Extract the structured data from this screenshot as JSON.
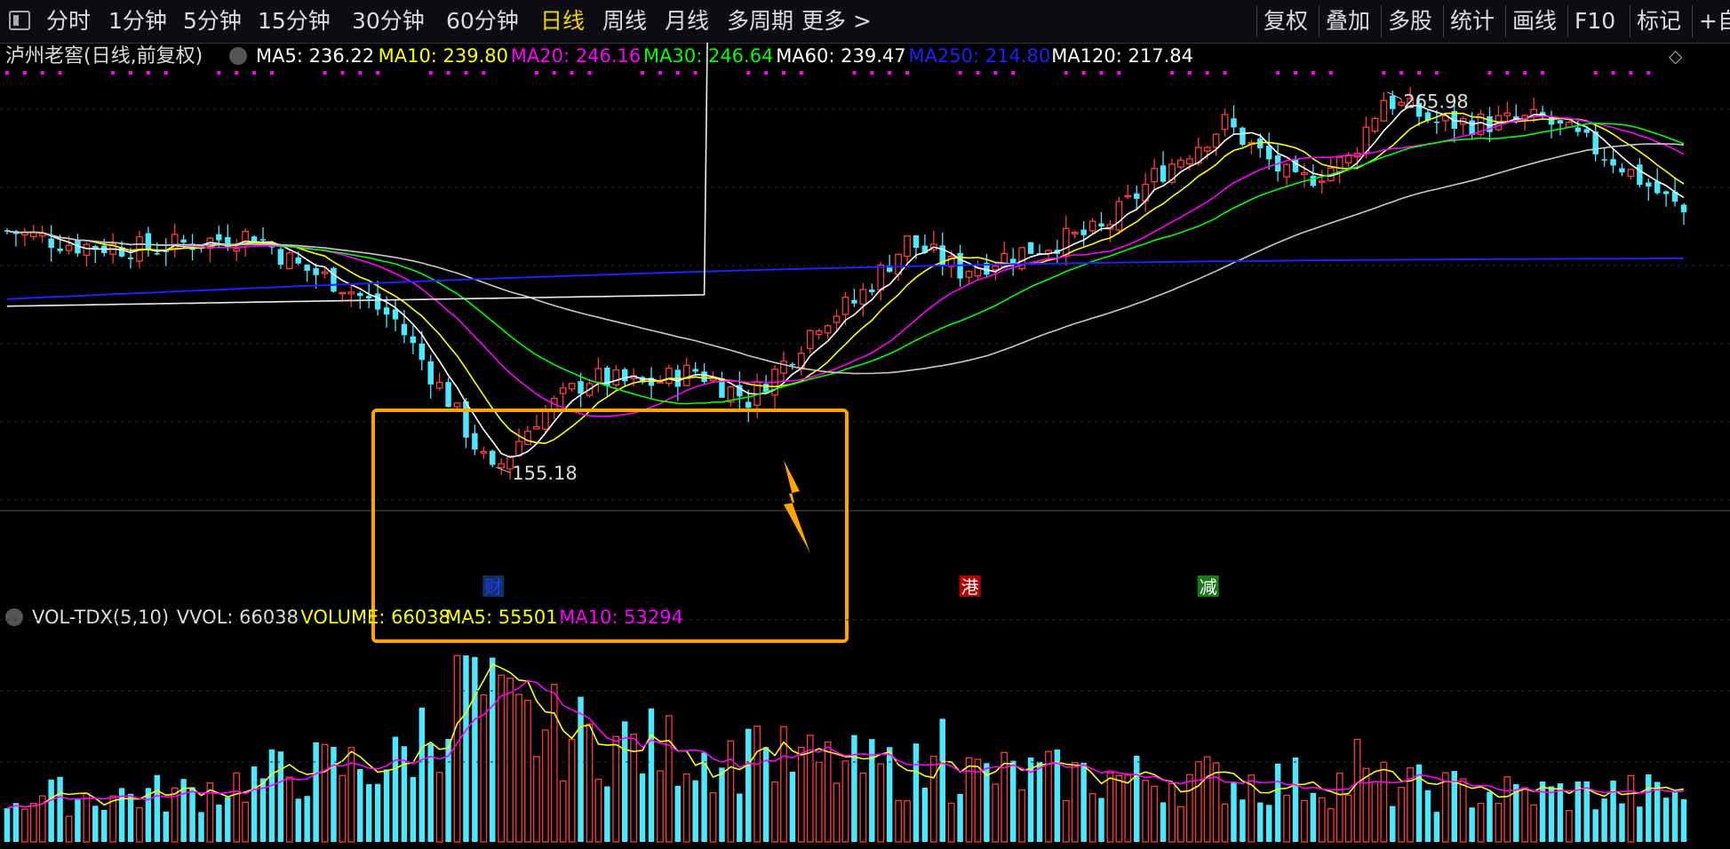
{
  "toolbar": {
    "left_tabs": [
      "分时",
      "1分钟",
      "5分钟",
      "15分钟",
      "30分钟",
      "60分钟",
      "日线",
      "周线",
      "月线",
      "多周期",
      "更多 >"
    ],
    "active_tab": "日线",
    "right_tabs": [
      "复权",
      "叠加",
      "多股",
      "统计",
      "画线",
      "F10",
      "标记",
      "+自选"
    ]
  },
  "colors": {
    "background": "#000000",
    "up": "#ff3b3b",
    "down": "#4be8ff",
    "ma5": "#ffffff",
    "ma10": "#ffff00",
    "ma20": "#ff00ff",
    "ma30": "#00ff00",
    "ma60": "#c8c8c8",
    "ma250": "#1f1fff",
    "ma120": "#eeeeee",
    "highlight_box": "#ffa500"
  },
  "price_panel": {
    "title": "泸州老窖(日线,前复权)",
    "indicators": [
      {
        "label": "MA5: 236.22",
        "color": "#ffffff"
      },
      {
        "label": "MA10: 239.80",
        "color": "#ffff00"
      },
      {
        "label": "MA20: 246.16",
        "color": "#ff00ff"
      },
      {
        "label": "MA30: 246.64",
        "color": "#00ff00"
      },
      {
        "label": "MA60: 239.47",
        "color": "#ffffff"
      },
      {
        "label": "MA250: 214.80",
        "color": "#2020ff"
      },
      {
        "label": "MA120: 217.84",
        "color": "#ffffff"
      }
    ],
    "high_label": "265.98",
    "low_label": "155.18",
    "event_badges": [
      {
        "text": "财",
        "color": "#1e3cff",
        "bg": "#123060",
        "index": 55
      },
      {
        "text": "港",
        "color": "#ffffff",
        "bg": "#b00000",
        "index": 109
      },
      {
        "text": "减",
        "color": "#ffffff",
        "bg": "#1a7a1a",
        "index": 136
      }
    ]
  },
  "volume_panel": {
    "indicators": [
      {
        "label": "VOL-TDX(5,10)",
        "color": "#dddddd"
      },
      {
        "label": "VVOL: 66038",
        "color": "#dddddd"
      },
      {
        "label": "VOLUME: 66038",
        "color": "#ffff00"
      },
      {
        "label": "MA5: 55501",
        "color": "#ffff00"
      },
      {
        "label": "MA10: 53294",
        "color": "#ff00ff"
      }
    ]
  },
  "chart_data": {
    "type": "candlestick",
    "y_range": [
      150,
      270
    ],
    "anchors": [
      {
        "i": 0,
        "p": 225
      },
      {
        "i": 8,
        "p": 221
      },
      {
        "i": 16,
        "p": 220
      },
      {
        "i": 28,
        "p": 224
      },
      {
        "i": 33,
        "p": 215
      },
      {
        "i": 38,
        "p": 210
      },
      {
        "i": 44,
        "p": 200
      },
      {
        "i": 50,
        "p": 178
      },
      {
        "i": 55,
        "p": 157
      },
      {
        "i": 60,
        "p": 173
      },
      {
        "i": 66,
        "p": 184
      },
      {
        "i": 72,
        "p": 182
      },
      {
        "i": 78,
        "p": 186
      },
      {
        "i": 84,
        "p": 178
      },
      {
        "i": 88,
        "p": 188
      },
      {
        "i": 92,
        "p": 200
      },
      {
        "i": 96,
        "p": 205
      },
      {
        "i": 102,
        "p": 222
      },
      {
        "i": 108,
        "p": 214
      },
      {
        "i": 116,
        "p": 220
      },
      {
        "i": 124,
        "p": 225
      },
      {
        "i": 130,
        "p": 240
      },
      {
        "i": 138,
        "p": 255
      },
      {
        "i": 146,
        "p": 238
      },
      {
        "i": 152,
        "p": 245
      },
      {
        "i": 156,
        "p": 262
      },
      {
        "i": 162,
        "p": 255
      },
      {
        "i": 168,
        "p": 255
      },
      {
        "i": 174,
        "p": 256
      },
      {
        "i": 182,
        "p": 245
      },
      {
        "i": 190,
        "p": 230
      }
    ],
    "volume_anchors": [
      {
        "i": 0,
        "v": 24
      },
      {
        "i": 20,
        "v": 26
      },
      {
        "i": 33,
        "v": 38
      },
      {
        "i": 44,
        "v": 42
      },
      {
        "i": 52,
        "v": 80
      },
      {
        "i": 58,
        "v": 62
      },
      {
        "i": 70,
        "v": 52
      },
      {
        "i": 84,
        "v": 45
      },
      {
        "i": 95,
        "v": 40
      },
      {
        "i": 110,
        "v": 36
      },
      {
        "i": 130,
        "v": 34
      },
      {
        "i": 150,
        "v": 32
      },
      {
        "i": 170,
        "v": 26
      },
      {
        "i": 190,
        "v": 26
      }
    ],
    "count": 191,
    "note_box": "highlighted consolidation zone with arrow"
  }
}
